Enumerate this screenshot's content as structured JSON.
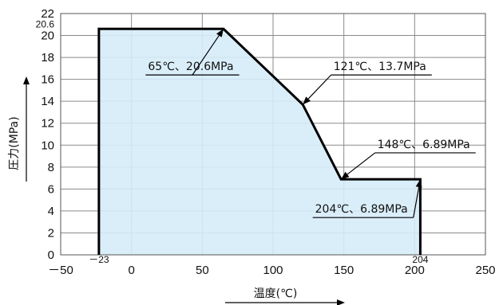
{
  "chart_data": {
    "type": "area",
    "xlabel": "温度(℃)",
    "ylabel": "圧力(MPa)",
    "xlim": [
      -50,
      250
    ],
    "ylim": [
      0,
      22
    ],
    "x_ticks": [
      -50,
      0,
      50,
      100,
      150,
      200,
      250
    ],
    "x_tick_labels": [
      "－50",
      "0",
      "50",
      "100",
      "150",
      "200",
      "250"
    ],
    "y_ticks": [
      0,
      2,
      4,
      6,
      8,
      10,
      12,
      14,
      16,
      18,
      20,
      22
    ],
    "extra_x_tick_labels": [
      {
        "x": -23,
        "label": "－23"
      },
      {
        "x": 204,
        "label": "204"
      }
    ],
    "extra_y_tick_labels": [
      {
        "y": 20.6,
        "label": "20.6"
      }
    ],
    "grid": true,
    "fill_color": "#d6ecfa",
    "line_color": "#000000",
    "series": [
      {
        "x": [
          -23,
          -23,
          65,
          121,
          148,
          204,
          204
        ],
        "y": [
          0,
          20.6,
          20.6,
          13.7,
          6.89,
          6.89,
          0
        ]
      }
    ],
    "annotations": [
      {
        "text": "65℃、20.6MPa",
        "x": 65,
        "y": 20.6,
        "label_x": 10,
        "label_y": 16.4
      },
      {
        "text": "121℃、13.7MPa",
        "x": 121,
        "y": 13.7,
        "label_x": 141,
        "label_y": 16.4
      },
      {
        "text": "148℃、6.89MPa",
        "x": 148,
        "y": 6.89,
        "label_x": 172,
        "label_y": 9.3
      },
      {
        "text": "204℃、6.89MPa",
        "x": 204,
        "y": 6.89,
        "label_x": 128,
        "label_y": 3.4
      }
    ]
  }
}
